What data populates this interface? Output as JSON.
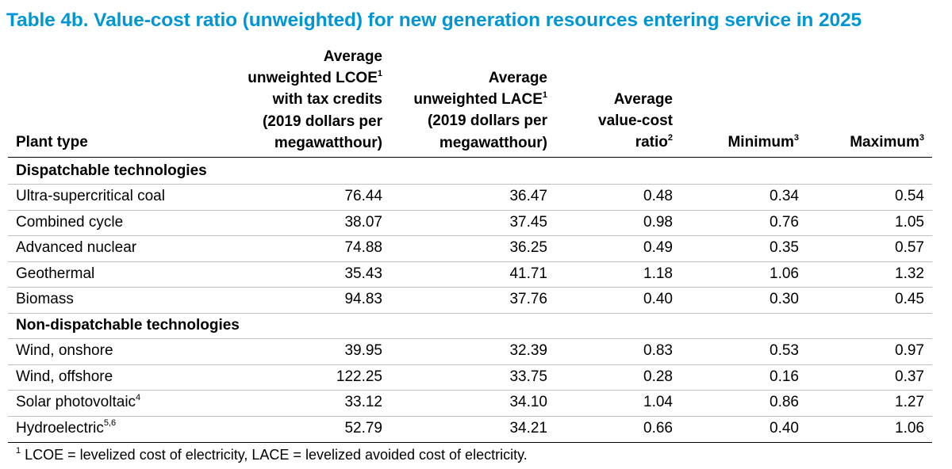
{
  "title": "Table 4b. Value-cost ratio (unweighted) for new generation resources entering service in 2025",
  "headers": {
    "plant_type": "Plant type",
    "lcoe": [
      "Average",
      "unweighted LCOE",
      "with tax credits",
      "(2019 dollars per",
      "megawatthour)"
    ],
    "lcoe_sup": "1",
    "lace": [
      "Average",
      "unweighted LACE",
      "(2019 dollars per",
      "megawatthour)"
    ],
    "lace_sup": "1",
    "ratio": [
      "Average",
      "value-cost",
      "ratio"
    ],
    "ratio_sup": "2",
    "minimum": "Minimum",
    "minimum_sup": "3",
    "maximum": "Maximum",
    "maximum_sup": "3"
  },
  "sections": [
    {
      "label": "Dispatchable technologies",
      "rows": [
        {
          "plant": "Ultra-supercritical coal",
          "sup": "",
          "lcoe": "76.44",
          "lace": "36.47",
          "ratio": "0.48",
          "min": "0.34",
          "max": "0.54"
        },
        {
          "plant": "Combined cycle",
          "sup": "",
          "lcoe": "38.07",
          "lace": "37.45",
          "ratio": "0.98",
          "min": "0.76",
          "max": "1.05"
        },
        {
          "plant": "Advanced nuclear",
          "sup": "",
          "lcoe": "74.88",
          "lace": "36.25",
          "ratio": "0.49",
          "min": "0.35",
          "max": "0.57"
        },
        {
          "plant": "Geothermal",
          "sup": "",
          "lcoe": "35.43",
          "lace": "41.71",
          "ratio": "1.18",
          "min": "1.06",
          "max": "1.32"
        },
        {
          "plant": "Biomass",
          "sup": "",
          "lcoe": "94.83",
          "lace": "37.76",
          "ratio": "0.40",
          "min": "0.30",
          "max": "0.45"
        }
      ]
    },
    {
      "label": "Non-dispatchable technologies",
      "rows": [
        {
          "plant": "Wind, onshore",
          "sup": "",
          "lcoe": "39.95",
          "lace": "32.39",
          "ratio": "0.83",
          "min": "0.53",
          "max": "0.97"
        },
        {
          "plant": "Wind, offshore",
          "sup": "",
          "lcoe": "122.25",
          "lace": "33.75",
          "ratio": "0.28",
          "min": "0.16",
          "max": "0.37"
        },
        {
          "plant": "Solar photovoltaic",
          "sup": "4",
          "lcoe": "33.12",
          "lace": "34.10",
          "ratio": "1.04",
          "min": "0.86",
          "max": "1.27"
        },
        {
          "plant": "Hydroelectric",
          "sup": "5,6",
          "lcoe": "52.79",
          "lace": "34.21",
          "ratio": "0.66",
          "min": "0.40",
          "max": "1.06"
        }
      ]
    }
  ],
  "footnote_sup": "1",
  "footnote": " LCOE = levelized cost of electricity, LACE = levelized avoided cost of electricity."
}
